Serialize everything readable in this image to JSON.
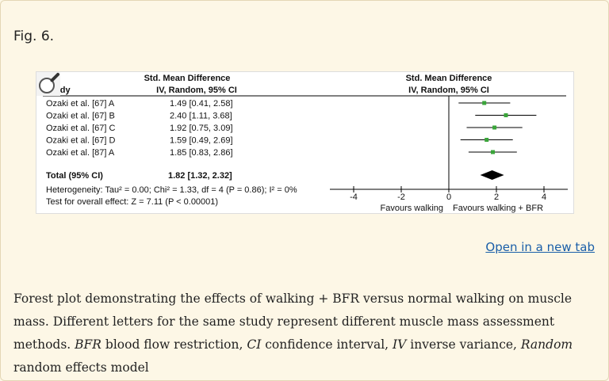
{
  "figure": {
    "label": "Fig. 6.",
    "open_link": "Open in a new tab",
    "caption_parts": [
      {
        "text": "Forest plot demonstrating the effects of walking + BFR versus normal walking on muscle mass. Different letters for the same study represent different muscle mass assessment methods. ",
        "italic": false
      },
      {
        "text": "BFR",
        "italic": true
      },
      {
        "text": " blood flow restriction, ",
        "italic": false
      },
      {
        "text": "CI",
        "italic": true
      },
      {
        "text": " confidence interval, ",
        "italic": false
      },
      {
        "text": "IV",
        "italic": true
      },
      {
        "text": " inverse variance, ",
        "italic": false
      },
      {
        "text": "Random",
        "italic": true
      },
      {
        "text": " random effects model",
        "italic": false
      }
    ]
  },
  "chart_data": {
    "type": "forest",
    "header": {
      "study": "Study",
      "smd_title": "Std. Mean Difference",
      "smd_sub": "IV, Random, 95% CI",
      "plot_title": "Std. Mean Difference",
      "plot_sub": "IV, Random, 95% CI"
    },
    "studies": [
      {
        "name": "Ozaki et al. [67] A",
        "ci_text": "1.49 [0.41, 2.58]",
        "est": 1.49,
        "lo": 0.41,
        "hi": 2.58
      },
      {
        "name": "Ozaki et al. [67] B",
        "ci_text": "2.40 [1.11, 3.68]",
        "est": 2.4,
        "lo": 1.11,
        "hi": 3.68
      },
      {
        "name": "Ozaki et al. [67] C",
        "ci_text": "1.92 [0.75, 3.09]",
        "est": 1.92,
        "lo": 0.75,
        "hi": 3.09
      },
      {
        "name": "Ozaki et al. [67] D",
        "ci_text": "1.59 [0.49, 2.69]",
        "est": 1.59,
        "lo": 0.49,
        "hi": 2.69
      },
      {
        "name": "Ozaki et al. [87] A",
        "ci_text": "1.85 [0.83, 2.86]",
        "est": 1.85,
        "lo": 0.83,
        "hi": 2.86
      }
    ],
    "total": {
      "name": "Total (95% CI)",
      "ci_text": "1.82 [1.32, 2.32]",
      "est": 1.82,
      "lo": 1.32,
      "hi": 2.32
    },
    "heterogeneity": "Heterogeneity: Tau² = 0.00; Chi² = 1.33, df = 4 (P = 0.86); I² = 0%",
    "overall_effect": "Test for overall effect: Z = 7.11 (P < 0.00001)",
    "xlim": [
      -5,
      5
    ],
    "ticks": [
      -4,
      -2,
      0,
      2,
      4
    ],
    "tick_labels": [
      "-4",
      "-2",
      "0",
      "2",
      "4"
    ],
    "favours_left": "Favours walking",
    "favours_right": "Favours walking + BFR",
    "marker_color": "#3aa53a"
  }
}
